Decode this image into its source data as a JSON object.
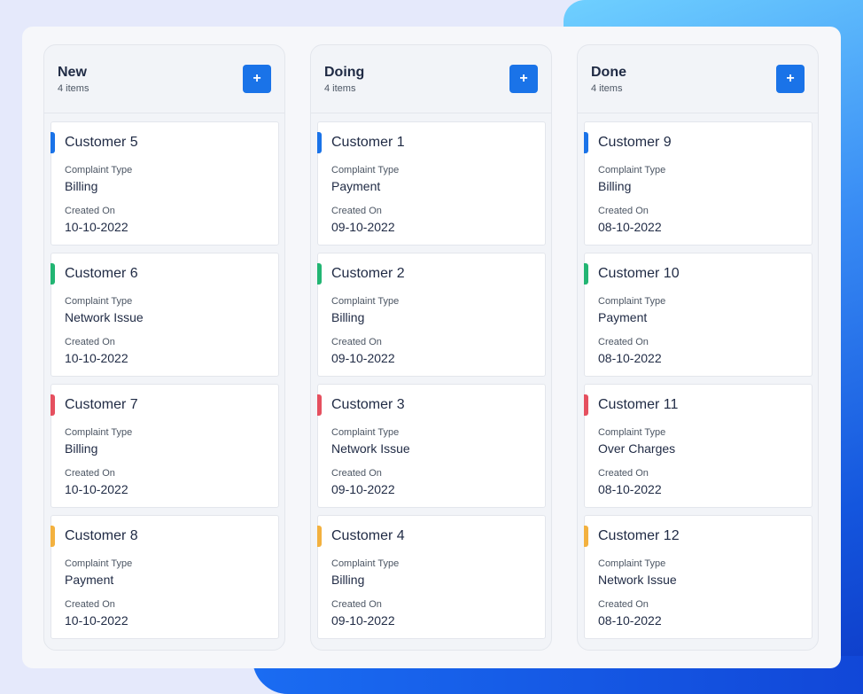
{
  "colors": {
    "accent": "#1a73e8",
    "bar_blue": "#1a73e8",
    "bar_green": "#22b573",
    "bar_red": "#e5505f",
    "bar_orange": "#f3b13f"
  },
  "labels": {
    "complaint_type": "Complaint Type",
    "created_on": "Created On",
    "add_icon": "+"
  },
  "columns": [
    {
      "title": "New",
      "count": "4 items",
      "cards": [
        {
          "name": "Customer 5",
          "type": "Billing",
          "date": "10-10-2022",
          "color": "#1a73e8"
        },
        {
          "name": "Customer 6",
          "type": "Network Issue",
          "date": "10-10-2022",
          "color": "#22b573"
        },
        {
          "name": "Customer 7",
          "type": "Billing",
          "date": "10-10-2022",
          "color": "#e5505f"
        },
        {
          "name": "Customer 8",
          "type": "Payment",
          "date": "10-10-2022",
          "color": "#f3b13f"
        }
      ]
    },
    {
      "title": "Doing",
      "count": "4 items",
      "cards": [
        {
          "name": "Customer 1",
          "type": "Payment",
          "date": "09-10-2022",
          "color": "#1a73e8"
        },
        {
          "name": "Customer 2",
          "type": "Billing",
          "date": "09-10-2022",
          "color": "#22b573"
        },
        {
          "name": "Customer 3",
          "type": "Network Issue",
          "date": "09-10-2022",
          "color": "#e5505f"
        },
        {
          "name": "Customer 4",
          "type": "Billing",
          "date": "09-10-2022",
          "color": "#f3b13f"
        }
      ]
    },
    {
      "title": "Done",
      "count": "4 items",
      "cards": [
        {
          "name": "Customer 9",
          "type": "Billing",
          "date": "08-10-2022",
          "color": "#1a73e8"
        },
        {
          "name": "Customer 10",
          "type": "Payment",
          "date": "08-10-2022",
          "color": "#22b573"
        },
        {
          "name": "Customer 11",
          "type": "Over Charges",
          "date": "08-10-2022",
          "color": "#e5505f"
        },
        {
          "name": "Customer 12",
          "type": "Network Issue",
          "date": "08-10-2022",
          "color": "#f3b13f"
        }
      ]
    }
  ]
}
